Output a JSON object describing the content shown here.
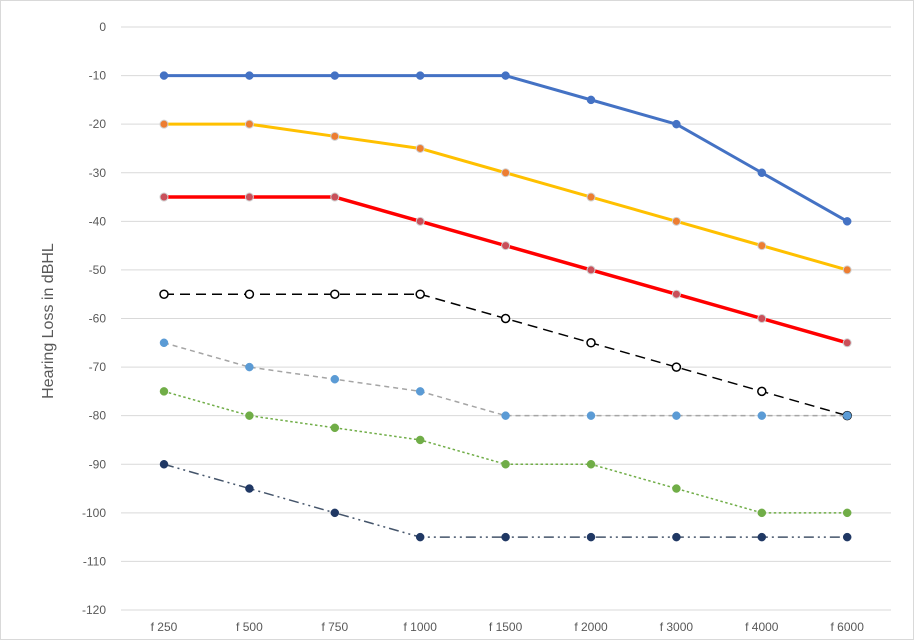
{
  "chart_data": {
    "type": "line",
    "title": "",
    "xlabel": "",
    "ylabel": "Hearing Loss in dBHL",
    "categories": [
      "f 250",
      "f 500",
      "f 750",
      "f 1000",
      "f 1500",
      "f 2000",
      "f 3000",
      "f 4000",
      "f 6000"
    ],
    "ylim": [
      -120,
      0
    ],
    "ytick_step": 10,
    "grid": true,
    "legend": "none",
    "series": [
      {
        "values": [
          -10,
          -10,
          -10,
          -10,
          -10,
          -15,
          -20,
          -30,
          -40
        ],
        "color": "#4472C4",
        "dash": "solid",
        "width": 3,
        "marker": "#4472C4",
        "marker_fill": "#4472C4",
        "marker_style": "filled"
      },
      {
        "values": [
          -20,
          -20,
          -22.5,
          -25,
          -30,
          -35,
          -40,
          -45,
          -50
        ],
        "color": "#FFC000",
        "dash": "solid",
        "width": 3,
        "marker": "#ED7D31",
        "marker_fill": "#ED7D31",
        "marker_style": "ring"
      },
      {
        "values": [
          -35,
          -35,
          -35,
          -40,
          -45,
          -50,
          -55,
          -60,
          -65
        ],
        "color": "#FF0000",
        "dash": "solid",
        "width": 3.5,
        "marker": "#C9505A",
        "marker_fill": "#C9505A",
        "marker_style": "ring"
      },
      {
        "values": [
          -55,
          -55,
          -55,
          -55,
          -60,
          -65,
          -70,
          -75,
          -80
        ],
        "color": "#000000",
        "dash": "long-dash",
        "width": 1.5,
        "marker": "#000000",
        "marker_fill": "#ffffff",
        "marker_style": "open"
      },
      {
        "values": [
          -65,
          -70,
          -72.5,
          -75,
          -80,
          -80,
          -80,
          -80,
          -80
        ],
        "color": "#A5A5A5",
        "dash": "dash",
        "width": 1.5,
        "marker": "#5B9BD5",
        "marker_fill": "#5B9BD5",
        "marker_style": "filled"
      },
      {
        "values": [
          -75,
          -80,
          -82.5,
          -85,
          -90,
          -90,
          -95,
          -100,
          -100
        ],
        "color": "#70AD47",
        "dash": "dot",
        "width": 1.5,
        "marker": "#70AD47",
        "marker_fill": "#70AD47",
        "marker_style": "filled"
      },
      {
        "values": [
          -90,
          -95,
          -100,
          -105,
          -105,
          -105,
          -105,
          -105,
          -105
        ],
        "color": "#44546A",
        "dash": "dash-dot-dot",
        "width": 1.5,
        "marker": "#203864",
        "marker_fill": "#203864",
        "marker_style": "filled"
      }
    ]
  }
}
